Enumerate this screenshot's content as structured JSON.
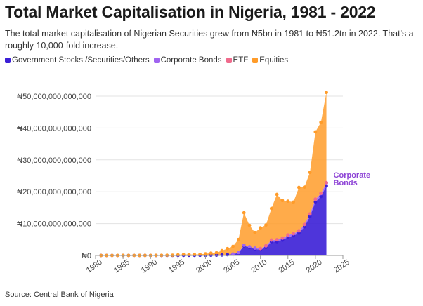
{
  "title": "Total Market Capitalisation in Nigeria, 1981 - 2022",
  "subtitle": "The total market capitalisation of Nigerian Securities grew from ₦5bn in 1981 to ₦51.2tn in 2022. That's a roughly 10,000-fold increase.",
  "source": "Source: Central Bank of Nigeria",
  "colors": {
    "government": "#3b1fd6",
    "corporate": "#a064f0",
    "etf": "#f06a8c",
    "equities": "#ff9c2a"
  },
  "chart_data": {
    "type": "area",
    "stacked": true,
    "title": "Total Market Capitalisation in Nigeria, 1981 - 2022",
    "xlabel": "",
    "ylabel": "",
    "xlim": [
      1980,
      2025
    ],
    "ylim": [
      0,
      50000000000000
    ],
    "x_ticks": [
      1980,
      1985,
      1990,
      1995,
      2000,
      2005,
      2010,
      2015,
      2020,
      2025
    ],
    "x_tick_labels": [
      "1980",
      "1985",
      "1990",
      "1995",
      "2000",
      "2005",
      "2010",
      "2015",
      "2020",
      "2025"
    ],
    "y_ticks": [
      0,
      10000000000000,
      20000000000000,
      30000000000000,
      40000000000000,
      50000000000000
    ],
    "y_tick_labels": [
      "₦0",
      "₦10,000,000,000,000",
      "₦20,000,000,000,000",
      "₦30,000,000,000,000",
      "₦40,000,000,000,000",
      "₦50,000,000,000,000"
    ],
    "legend": [
      {
        "key": "government",
        "label": "Government Stocks /Securities/Others"
      },
      {
        "key": "corporate",
        "label": "Corporate Bonds"
      },
      {
        "key": "etf",
        "label": "ETF"
      },
      {
        "key": "equities",
        "label": "Equities"
      }
    ],
    "annotation": {
      "text": "Corporate Bonds",
      "line1": "Corporate",
      "line2": "Bonds",
      "series": "corporate",
      "x": 2022
    },
    "x": [
      1981,
      1982,
      1983,
      1984,
      1985,
      1986,
      1987,
      1988,
      1989,
      1990,
      1991,
      1992,
      1993,
      1994,
      1995,
      1996,
      1997,
      1998,
      1999,
      2000,
      2001,
      2002,
      2003,
      2004,
      2005,
      2006,
      2007,
      2008,
      2009,
      2010,
      2011,
      2012,
      2013,
      2014,
      2015,
      2016,
      2017,
      2018,
      2019,
      2020,
      2021,
      2022
    ],
    "series": [
      {
        "name": "Government Stocks /Securities/Others",
        "key": "government",
        "values": [
          4000000000.0,
          5000000000.0,
          6000000000.0,
          6000000000.0,
          7000000000.0,
          8000000000.0,
          9000000000.0,
          10000000000.0,
          10000000000.0,
          11000000000.0,
          12000000000.0,
          13000000000.0,
          15000000000.0,
          20000000000.0,
          25000000000.0,
          30000000000.0,
          35000000000.0,
          40000000000.0,
          50000000000.0,
          60000000000.0,
          80000000000.0,
          100000000000.0,
          150000000000.0,
          250000000000.0,
          400000000000.0,
          800000000000.0,
          3000000000000.0,
          2500000000000.0,
          2000000000000.0,
          1800000000000.0,
          2500000000000.0,
          4300000000000.0,
          4300000000000.0,
          4800000000000.0,
          5800000000000.0,
          6200000000000.0,
          7000000000000.0,
          9000000000000.0,
          12200000000000.0,
          16800000000000.0,
          18500000000000.0,
          21800000000000.0
        ]
      },
      {
        "name": "Corporate Bonds",
        "key": "corporate",
        "values": [
          0,
          0,
          0,
          0,
          0,
          0,
          0,
          0,
          0,
          0,
          0,
          0,
          0,
          0,
          0,
          0,
          0,
          0,
          0,
          0,
          0,
          0,
          0,
          0,
          50000000000.0,
          100000000000.0,
          200000000000.0,
          250000000000.0,
          300000000000.0,
          350000000000.0,
          500000000000.0,
          500000000000.0,
          600000000000.0,
          600000000000.0,
          600000000000.0,
          600000000000.0,
          700000000000.0,
          700000000000.0,
          800000000000.0,
          800000000000.0,
          900000000000.0,
          900000000000.0
        ]
      },
      {
        "name": "ETF",
        "key": "etf",
        "values": [
          0,
          0,
          0,
          0,
          0,
          0,
          0,
          0,
          0,
          0,
          0,
          0,
          0,
          0,
          0,
          0,
          0,
          0,
          0,
          0,
          0,
          0,
          0,
          0,
          0,
          0,
          0,
          0,
          0,
          20000000000.0,
          50000000000.0,
          50000000000.0,
          50000000000.0,
          50000000000.0,
          50000000000.0,
          50000000000.0,
          50000000000.0,
          50000000000.0,
          50000000000.0,
          100000000000.0,
          100000000000.0,
          150000000000.0
        ]
      },
      {
        "name": "Equities",
        "key": "equities",
        "values": [
          1000000000.0,
          1000000000.0,
          1000000000.0,
          2000000000.0,
          3000000000.0,
          3000000000.0,
          4000000000.0,
          6000000000.0,
          8000000000.0,
          10000000000.0,
          20000000000.0,
          30000000000.0,
          50000000000.0,
          70000000000.0,
          180000000000.0,
          290000000000.0,
          280000000000.0,
          260000000000.0,
          300000000000.0,
          470000000000.0,
          660000000000.0,
          760000000000.0,
          1360000000000.0,
          1900000000000.0,
          2400000000000.0,
          4100000000000.0,
          10200000000000.0,
          6700000000000.0,
          4900000000000.0,
          6500000000000.0,
          6500000000000.0,
          9900000000000.0,
          14200000000000.0,
          11800000000000.0,
          10600000000000.0,
          9900000000000.0,
          13600000000000.0,
          11700000000000.0,
          13000000000000.0,
          21100000000000.0,
          22300000000000.0,
          28300000000000.0
        ]
      }
    ]
  }
}
